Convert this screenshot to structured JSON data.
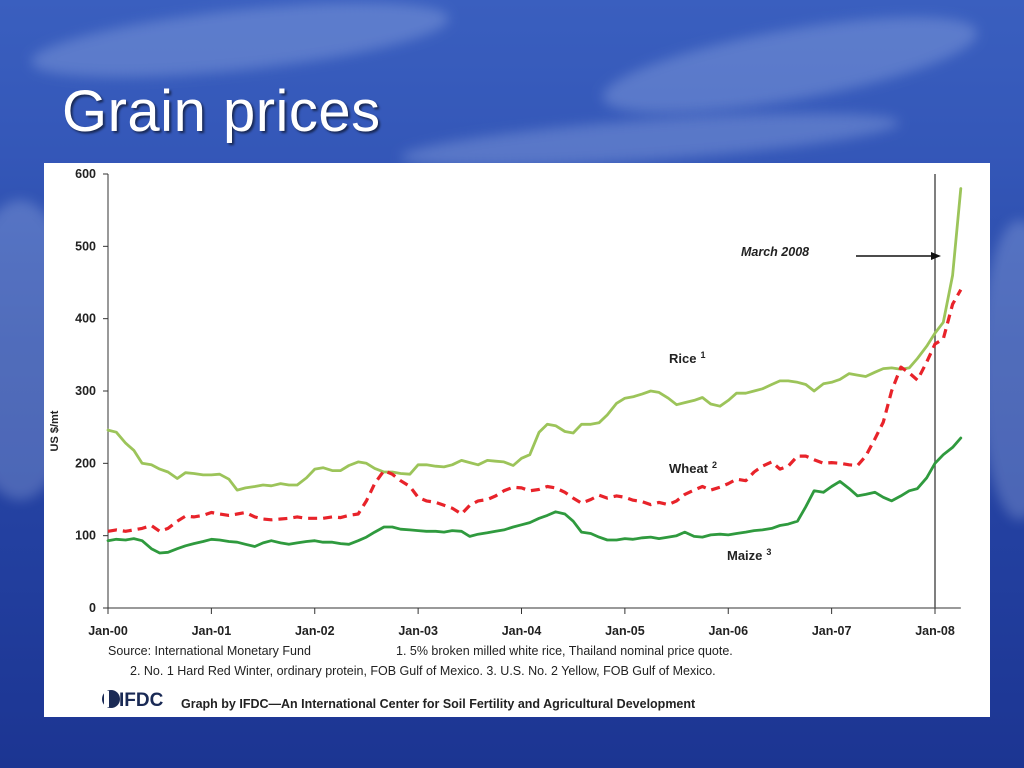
{
  "slide": {
    "title": "Grain prices"
  },
  "chart_data": {
    "type": "line",
    "title": "",
    "xlabel": "",
    "ylabel": "US $/mt",
    "ylim": [
      0,
      600
    ],
    "yticks": [
      "0",
      "100",
      "200",
      "300",
      "400",
      "500",
      "600"
    ],
    "xticks": [
      "Jan-00",
      "Jan-01",
      "Jan-02",
      "Jan-03",
      "Jan-04",
      "Jan-05",
      "Jan-06",
      "Jan-07",
      "Jan-08"
    ],
    "grid": false,
    "series": [
      {
        "name": "Rice",
        "footnote": "1",
        "color": "#9cc45a",
        "style": "solid",
        "points": [
          [
            2000.0,
            246
          ],
          [
            2000.08,
            243
          ],
          [
            2000.17,
            228
          ],
          [
            2000.25,
            218
          ],
          [
            2000.33,
            200
          ],
          [
            2000.42,
            198
          ],
          [
            2000.5,
            192
          ],
          [
            2000.58,
            188
          ],
          [
            2000.67,
            179
          ],
          [
            2000.75,
            187
          ],
          [
            2000.83,
            186
          ],
          [
            2000.92,
            184
          ],
          [
            2001.0,
            184
          ],
          [
            2001.08,
            185
          ],
          [
            2001.17,
            178
          ],
          [
            2001.25,
            163
          ],
          [
            2001.33,
            166
          ],
          [
            2001.42,
            168
          ],
          [
            2001.5,
            170
          ],
          [
            2001.58,
            169
          ],
          [
            2001.67,
            172
          ],
          [
            2001.75,
            170
          ],
          [
            2001.83,
            170
          ],
          [
            2001.92,
            180
          ],
          [
            2002.0,
            192
          ],
          [
            2002.08,
            194
          ],
          [
            2002.17,
            190
          ],
          [
            2002.25,
            190
          ],
          [
            2002.33,
            197
          ],
          [
            2002.42,
            202
          ],
          [
            2002.5,
            200
          ],
          [
            2002.58,
            193
          ],
          [
            2002.67,
            188
          ],
          [
            2002.75,
            188
          ],
          [
            2002.83,
            186
          ],
          [
            2002.92,
            185
          ],
          [
            2003.0,
            198
          ],
          [
            2003.08,
            198
          ],
          [
            2003.17,
            196
          ],
          [
            2003.25,
            195
          ],
          [
            2003.33,
            198
          ],
          [
            2003.42,
            204
          ],
          [
            2003.5,
            201
          ],
          [
            2003.58,
            198
          ],
          [
            2003.67,
            204
          ],
          [
            2003.75,
            203
          ],
          [
            2003.83,
            202
          ],
          [
            2003.92,
            197
          ],
          [
            2004.0,
            207
          ],
          [
            2004.08,
            212
          ],
          [
            2004.17,
            243
          ],
          [
            2004.25,
            254
          ],
          [
            2004.33,
            252
          ],
          [
            2004.42,
            244
          ],
          [
            2004.5,
            242
          ],
          [
            2004.58,
            254
          ],
          [
            2004.67,
            254
          ],
          [
            2004.75,
            256
          ],
          [
            2004.83,
            267
          ],
          [
            2004.92,
            283
          ],
          [
            2005.0,
            290
          ],
          [
            2005.08,
            292
          ],
          [
            2005.17,
            296
          ],
          [
            2005.25,
            300
          ],
          [
            2005.33,
            298
          ],
          [
            2005.42,
            290
          ],
          [
            2005.5,
            281
          ],
          [
            2005.58,
            284
          ],
          [
            2005.67,
            287
          ],
          [
            2005.75,
            291
          ],
          [
            2005.83,
            282
          ],
          [
            2005.92,
            279
          ],
          [
            2006.0,
            287
          ],
          [
            2006.08,
            297
          ],
          [
            2006.17,
            297
          ],
          [
            2006.25,
            300
          ],
          [
            2006.33,
            303
          ],
          [
            2006.42,
            309
          ],
          [
            2006.5,
            314
          ],
          [
            2006.58,
            314
          ],
          [
            2006.67,
            312
          ],
          [
            2006.75,
            309
          ],
          [
            2006.83,
            300
          ],
          [
            2006.92,
            310
          ],
          [
            2007.0,
            312
          ],
          [
            2007.08,
            316
          ],
          [
            2007.17,
            324
          ],
          [
            2007.25,
            322
          ],
          [
            2007.33,
            320
          ],
          [
            2007.42,
            326
          ],
          [
            2007.5,
            331
          ],
          [
            2007.58,
            332
          ],
          [
            2007.67,
            330
          ],
          [
            2007.75,
            332
          ],
          [
            2007.83,
            345
          ],
          [
            2007.92,
            362
          ],
          [
            2008.0,
            380
          ],
          [
            2008.08,
            395
          ],
          [
            2008.17,
            460
          ],
          [
            2008.25,
            580
          ]
        ]
      },
      {
        "name": "Wheat",
        "footnote": "2",
        "color": "#e8232a",
        "style": "dashed",
        "points": [
          [
            2000.0,
            106
          ],
          [
            2000.08,
            108
          ],
          [
            2000.17,
            106
          ],
          [
            2000.25,
            108
          ],
          [
            2000.33,
            110
          ],
          [
            2000.42,
            114
          ],
          [
            2000.5,
            106
          ],
          [
            2000.58,
            110
          ],
          [
            2000.67,
            120
          ],
          [
            2000.75,
            127
          ],
          [
            2000.83,
            126
          ],
          [
            2000.92,
            128
          ],
          [
            2001.0,
            132
          ],
          [
            2001.08,
            130
          ],
          [
            2001.17,
            128
          ],
          [
            2001.25,
            130
          ],
          [
            2001.33,
            132
          ],
          [
            2001.42,
            126
          ],
          [
            2001.5,
            123
          ],
          [
            2001.58,
            122
          ],
          [
            2001.67,
            123
          ],
          [
            2001.75,
            124
          ],
          [
            2001.83,
            126
          ],
          [
            2001.92,
            124
          ],
          [
            2002.0,
            124
          ],
          [
            2002.08,
            124
          ],
          [
            2002.17,
            126
          ],
          [
            2002.25,
            125
          ],
          [
            2002.33,
            128
          ],
          [
            2002.42,
            130
          ],
          [
            2002.5,
            148
          ],
          [
            2002.58,
            172
          ],
          [
            2002.67,
            190
          ],
          [
            2002.75,
            185
          ],
          [
            2002.83,
            176
          ],
          [
            2002.92,
            168
          ],
          [
            2003.0,
            153
          ],
          [
            2003.08,
            148
          ],
          [
            2003.17,
            146
          ],
          [
            2003.25,
            142
          ],
          [
            2003.33,
            138
          ],
          [
            2003.42,
            130
          ],
          [
            2003.5,
            142
          ],
          [
            2003.58,
            148
          ],
          [
            2003.67,
            150
          ],
          [
            2003.75,
            155
          ],
          [
            2003.83,
            162
          ],
          [
            2003.92,
            167
          ],
          [
            2004.0,
            166
          ],
          [
            2004.08,
            162
          ],
          [
            2004.17,
            164
          ],
          [
            2004.25,
            168
          ],
          [
            2004.33,
            166
          ],
          [
            2004.42,
            160
          ],
          [
            2004.5,
            152
          ],
          [
            2004.58,
            145
          ],
          [
            2004.67,
            150
          ],
          [
            2004.75,
            156
          ],
          [
            2004.83,
            152
          ],
          [
            2004.92,
            155
          ],
          [
            2005.0,
            153
          ],
          [
            2005.08,
            149
          ],
          [
            2005.17,
            147
          ],
          [
            2005.25,
            143
          ],
          [
            2005.33,
            146
          ],
          [
            2005.42,
            143
          ],
          [
            2005.5,
            148
          ],
          [
            2005.58,
            157
          ],
          [
            2005.67,
            163
          ],
          [
            2005.75,
            168
          ],
          [
            2005.83,
            163
          ],
          [
            2005.92,
            167
          ],
          [
            2006.0,
            172
          ],
          [
            2006.08,
            178
          ],
          [
            2006.17,
            176
          ],
          [
            2006.25,
            188
          ],
          [
            2006.33,
            196
          ],
          [
            2006.42,
            202
          ],
          [
            2006.5,
            192
          ],
          [
            2006.58,
            196
          ],
          [
            2006.67,
            210
          ],
          [
            2006.75,
            210
          ],
          [
            2006.83,
            205
          ],
          [
            2006.92,
            200
          ],
          [
            2007.0,
            201
          ],
          [
            2007.08,
            200
          ],
          [
            2007.17,
            198
          ],
          [
            2007.25,
            197
          ],
          [
            2007.33,
            210
          ],
          [
            2007.42,
            234
          ],
          [
            2007.5,
            257
          ],
          [
            2007.58,
            300
          ],
          [
            2007.67,
            333
          ],
          [
            2007.75,
            325
          ],
          [
            2007.83,
            315
          ],
          [
            2007.92,
            340
          ],
          [
            2008.0,
            365
          ],
          [
            2008.08,
            372
          ],
          [
            2008.17,
            420
          ],
          [
            2008.25,
            440
          ]
        ]
      },
      {
        "name": "Maize",
        "footnote": "3",
        "color": "#2f9a3e",
        "style": "solid",
        "points": [
          [
            2000.0,
            93
          ],
          [
            2000.08,
            95
          ],
          [
            2000.17,
            94
          ],
          [
            2000.25,
            96
          ],
          [
            2000.33,
            93
          ],
          [
            2000.42,
            82
          ],
          [
            2000.5,
            76
          ],
          [
            2000.58,
            77
          ],
          [
            2000.67,
            82
          ],
          [
            2000.75,
            86
          ],
          [
            2000.83,
            89
          ],
          [
            2000.92,
            92
          ],
          [
            2001.0,
            95
          ],
          [
            2001.08,
            94
          ],
          [
            2001.17,
            92
          ],
          [
            2001.25,
            91
          ],
          [
            2001.33,
            88
          ],
          [
            2001.42,
            85
          ],
          [
            2001.5,
            90
          ],
          [
            2001.58,
            93
          ],
          [
            2001.67,
            90
          ],
          [
            2001.75,
            88
          ],
          [
            2001.83,
            90
          ],
          [
            2001.92,
            92
          ],
          [
            2002.0,
            93
          ],
          [
            2002.08,
            91
          ],
          [
            2002.17,
            91
          ],
          [
            2002.25,
            89
          ],
          [
            2002.33,
            88
          ],
          [
            2002.42,
            93
          ],
          [
            2002.5,
            98
          ],
          [
            2002.58,
            105
          ],
          [
            2002.67,
            112
          ],
          [
            2002.75,
            112
          ],
          [
            2002.83,
            109
          ],
          [
            2002.92,
            108
          ],
          [
            2003.0,
            107
          ],
          [
            2003.08,
            106
          ],
          [
            2003.17,
            106
          ],
          [
            2003.25,
            105
          ],
          [
            2003.33,
            107
          ],
          [
            2003.42,
            106
          ],
          [
            2003.5,
            99
          ],
          [
            2003.58,
            102
          ],
          [
            2003.67,
            104
          ],
          [
            2003.75,
            106
          ],
          [
            2003.83,
            108
          ],
          [
            2003.92,
            112
          ],
          [
            2004.0,
            115
          ],
          [
            2004.08,
            118
          ],
          [
            2004.17,
            124
          ],
          [
            2004.25,
            128
          ],
          [
            2004.33,
            133
          ],
          [
            2004.42,
            130
          ],
          [
            2004.5,
            120
          ],
          [
            2004.58,
            105
          ],
          [
            2004.67,
            103
          ],
          [
            2004.75,
            98
          ],
          [
            2004.83,
            94
          ],
          [
            2004.92,
            94
          ],
          [
            2005.0,
            96
          ],
          [
            2005.08,
            95
          ],
          [
            2005.17,
            97
          ],
          [
            2005.25,
            98
          ],
          [
            2005.33,
            96
          ],
          [
            2005.42,
            98
          ],
          [
            2005.5,
            100
          ],
          [
            2005.58,
            105
          ],
          [
            2005.67,
            99
          ],
          [
            2005.75,
            98
          ],
          [
            2005.83,
            101
          ],
          [
            2005.92,
            102
          ],
          [
            2006.0,
            101
          ],
          [
            2006.08,
            103
          ],
          [
            2006.17,
            105
          ],
          [
            2006.25,
            107
          ],
          [
            2006.33,
            108
          ],
          [
            2006.42,
            110
          ],
          [
            2006.5,
            114
          ],
          [
            2006.58,
            116
          ],
          [
            2006.67,
            120
          ],
          [
            2006.75,
            140
          ],
          [
            2006.83,
            162
          ],
          [
            2006.92,
            160
          ],
          [
            2007.0,
            168
          ],
          [
            2007.08,
            175
          ],
          [
            2007.17,
            165
          ],
          [
            2007.25,
            155
          ],
          [
            2007.33,
            157
          ],
          [
            2007.42,
            160
          ],
          [
            2007.5,
            153
          ],
          [
            2007.58,
            148
          ],
          [
            2007.67,
            155
          ],
          [
            2007.75,
            162
          ],
          [
            2007.83,
            165
          ],
          [
            2007.92,
            180
          ],
          [
            2008.0,
            200
          ],
          [
            2008.08,
            212
          ],
          [
            2008.17,
            222
          ],
          [
            2008.25,
            235
          ]
        ]
      }
    ],
    "annotations": [
      {
        "text": "March 2008",
        "x": 2008.17
      }
    ],
    "notes": {
      "source": "Source:  International Monetary Fund",
      "note1": "1.  5% broken milled white rice, Thailand nominal price quote.",
      "note2_3": "2.  No. 1 Hard Red Winter, ordinary protein, FOB Gulf of Mexico.   3.  U.S. No. 2 Yellow, FOB Gulf of Mexico."
    },
    "credit": {
      "logo": "IFDC",
      "text": "Graph by IFDC—An International Center for Soil Fertility and Agricultural Development"
    }
  }
}
